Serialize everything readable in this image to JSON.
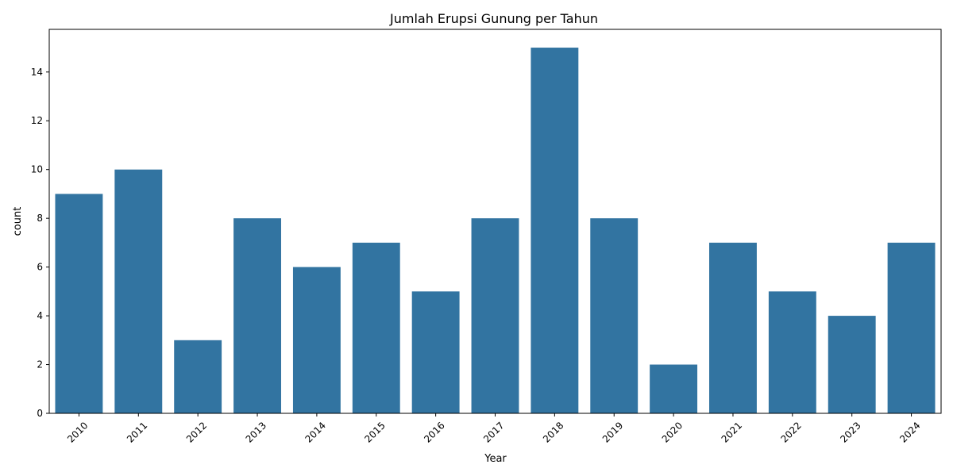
{
  "chart_data": {
    "type": "bar",
    "title": "Jumlah Erupsi Gunung per Tahun",
    "xlabel": "Year",
    "ylabel": "count",
    "categories": [
      "2010",
      "2011",
      "2012",
      "2013",
      "2014",
      "2015",
      "2016",
      "2017",
      "2018",
      "2019",
      "2020",
      "2021",
      "2022",
      "2023",
      "2024"
    ],
    "values": [
      9,
      10,
      3,
      8,
      6,
      7,
      5,
      8,
      15,
      8,
      2,
      7,
      5,
      4,
      7
    ],
    "ylim": [
      0,
      15.75
    ],
    "yticks": [
      0,
      2,
      4,
      6,
      8,
      10,
      12,
      14
    ],
    "bar_color": "#3274a1",
    "xtick_rotation": -45,
    "grid": false,
    "legend": "none"
  }
}
